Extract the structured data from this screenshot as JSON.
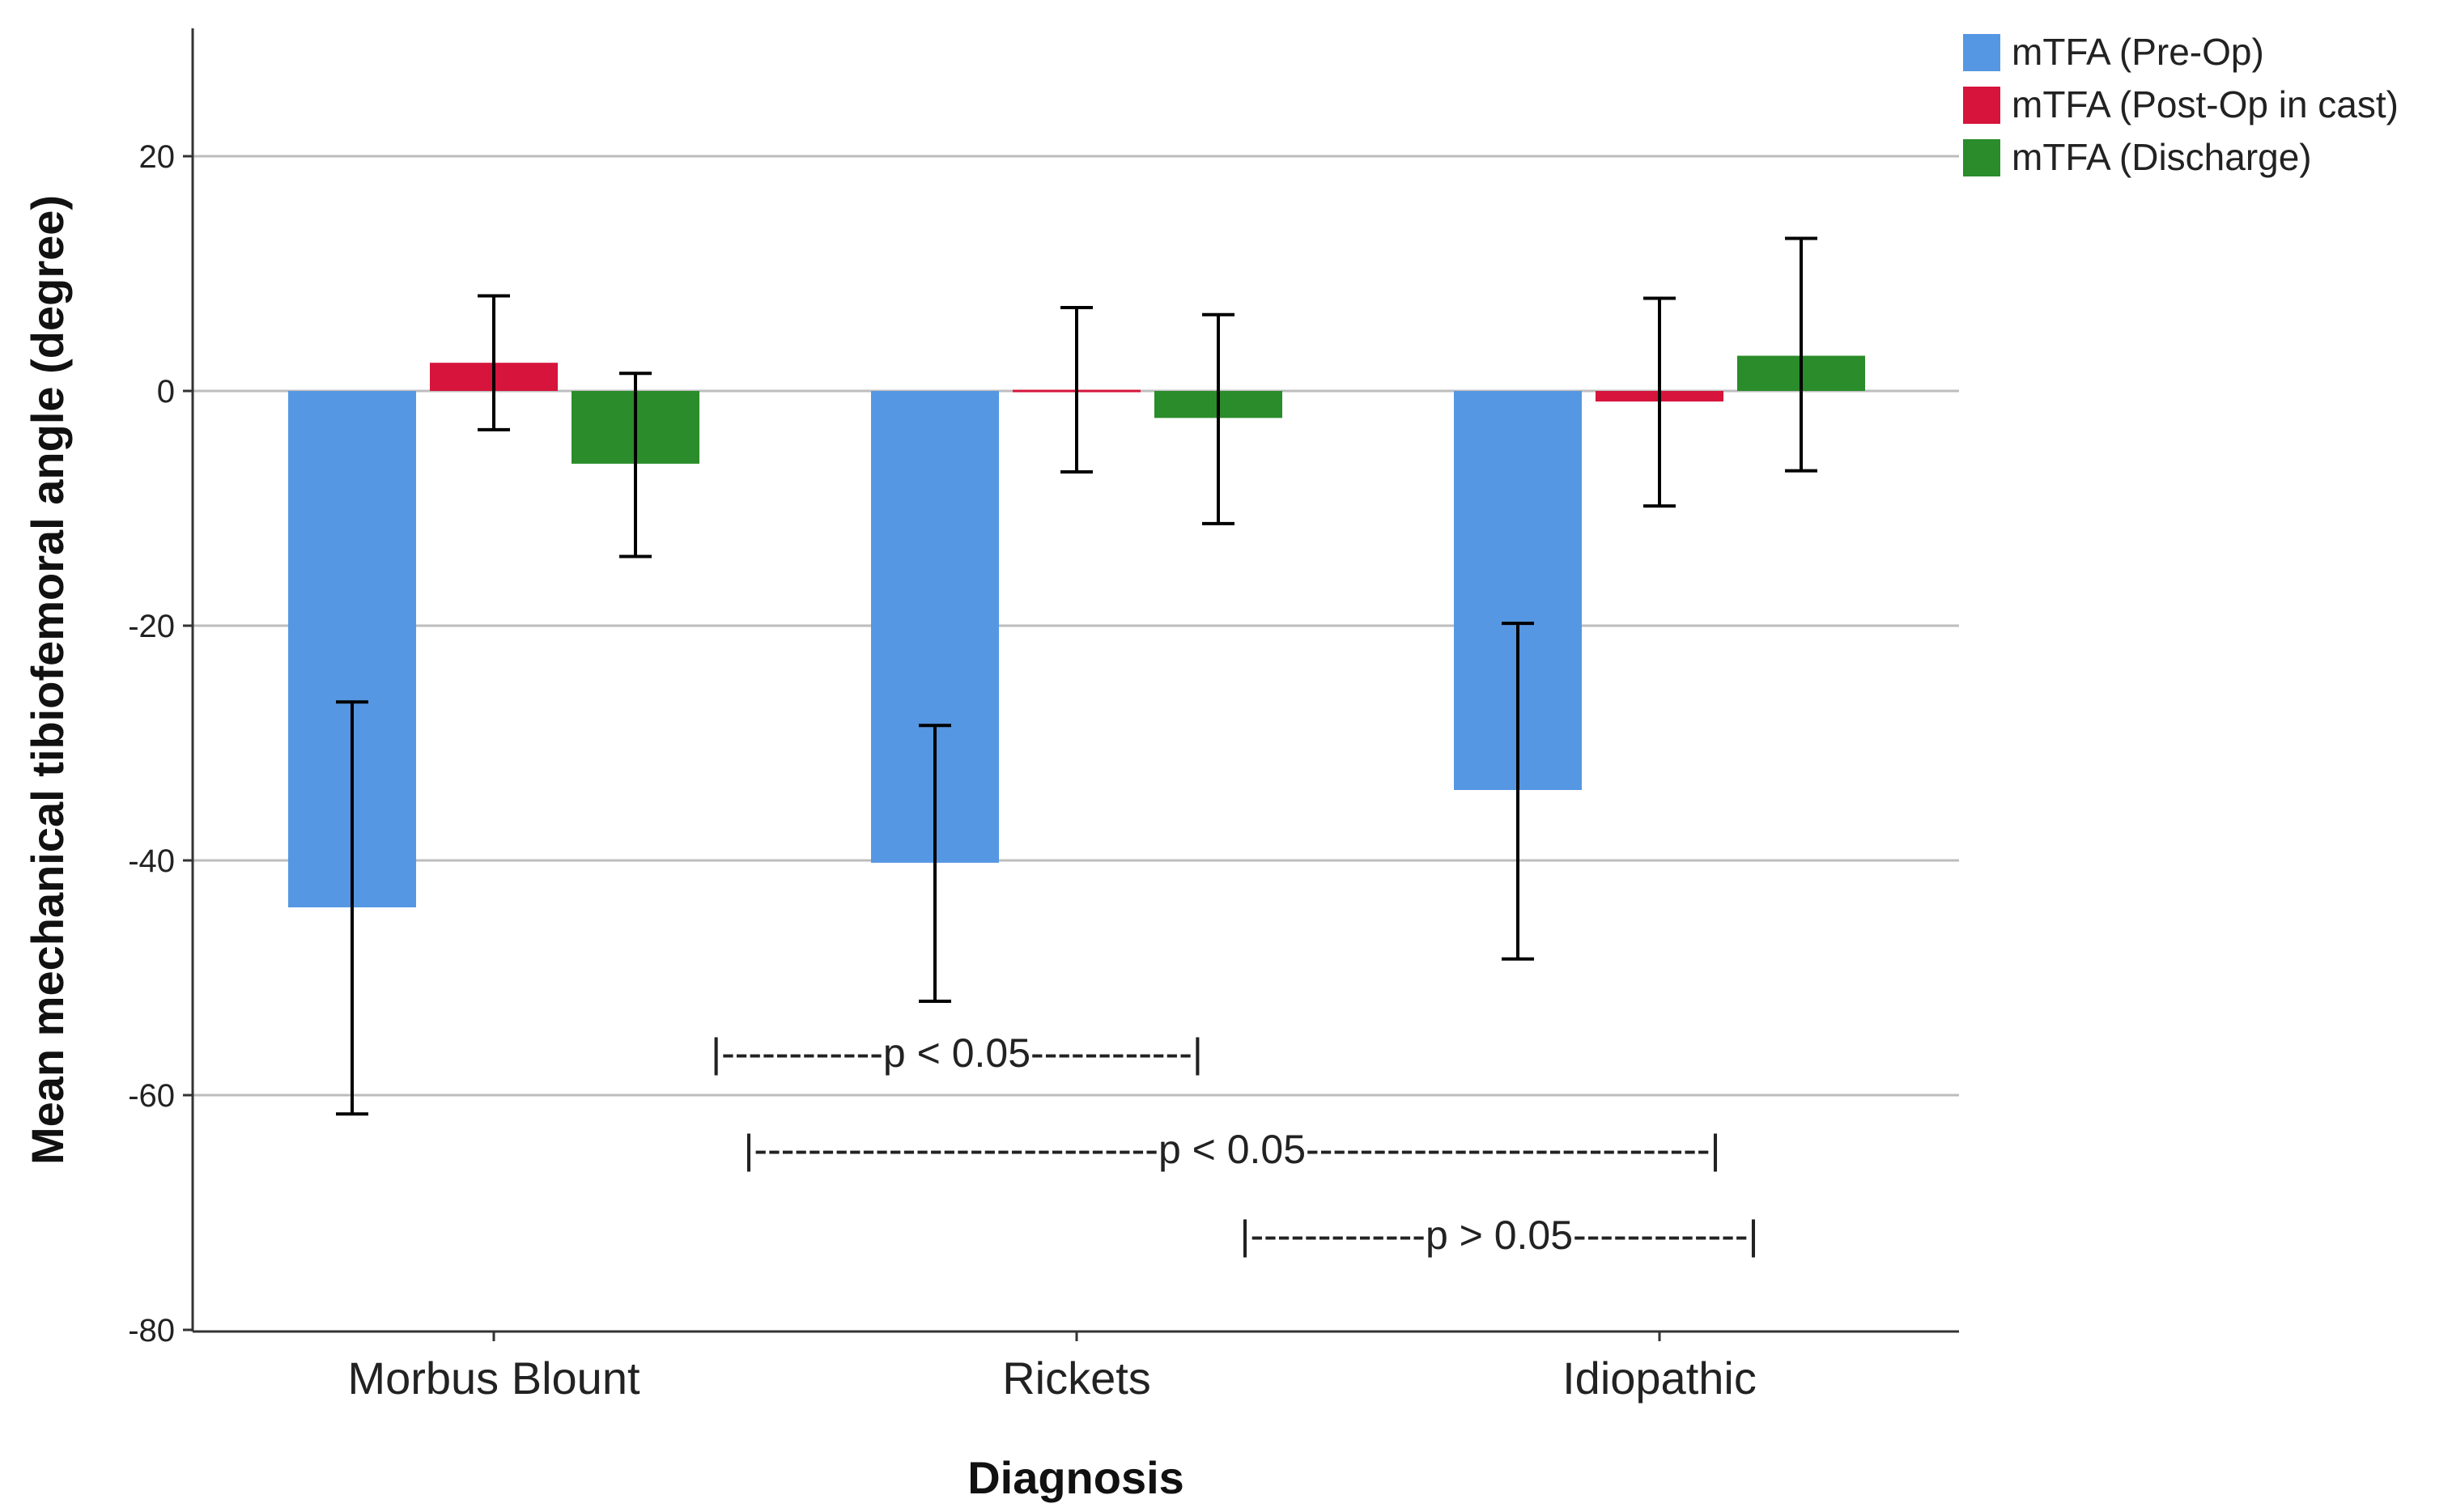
{
  "chart_data": {
    "type": "bar",
    "title": "",
    "xlabel": "Diagnosis",
    "ylabel": "Mean mechanical tibiofemoral angle (degree)",
    "ylim": [
      -80,
      30
    ],
    "yticks": [
      20,
      0,
      -20,
      -40,
      -60,
      -80
    ],
    "grid": true,
    "legend_position": "top-right",
    "categories": [
      "Morbus Blount",
      "Rickets",
      "Idiopathic"
    ],
    "series": [
      {
        "name": "mTFA (Pre-Op)",
        "color": "#5597E3",
        "values": [
          -44,
          -40.2,
          -34
        ],
        "error_low": [
          -61.6,
          -52.0,
          -48.4
        ],
        "error_high": [
          -26.5,
          -28.5,
          -19.8
        ]
      },
      {
        "name": "mTFA (Post-Op in cast)",
        "color": "#D6143C",
        "values": [
          2.4,
          0.1,
          -0.9
        ],
        "error_low": [
          -3.3,
          -6.9,
          -9.8
        ],
        "error_high": [
          8.1,
          7.1,
          7.9
        ]
      },
      {
        "name": "mTFA (Discharge)",
        "color": "#2A8C2A",
        "values": [
          -6.2,
          -2.3,
          3.0
        ],
        "error_low": [
          -14.1,
          -11.3,
          -6.8
        ],
        "error_high": [
          1.5,
          6.5,
          13.0
        ]
      }
    ],
    "annotations": [
      {
        "text": "|------------p < 0.05------------|",
        "y": -57
      },
      {
        "text": "|------------------------------p < 0.05------------------------------|",
        "y": -65
      },
      {
        "text": "|-------------p > 0.05-------------|",
        "y": -72
      }
    ]
  }
}
